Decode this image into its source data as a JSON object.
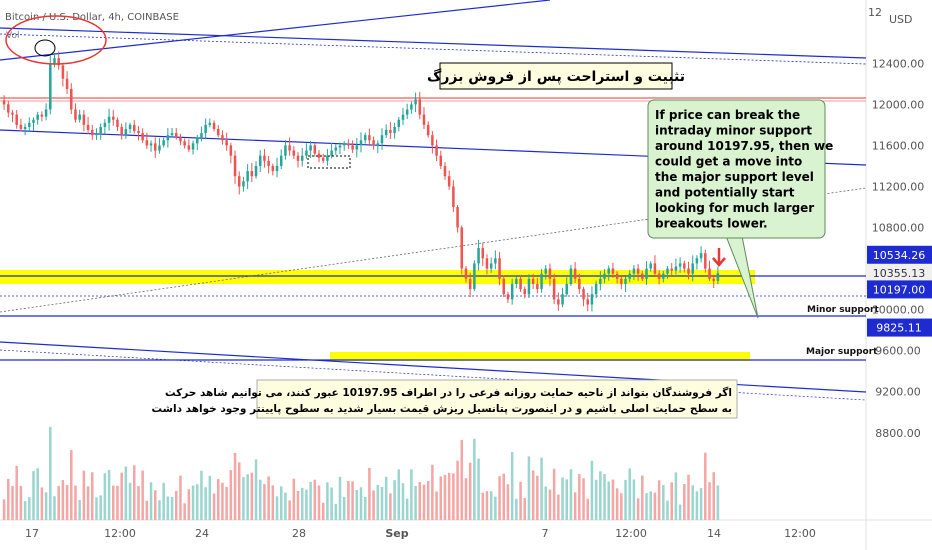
{
  "chart_data": {
    "type": "candlestick",
    "symbol_label": "Bitcoin / U.S. Dollar, 4h, COINBASE",
    "vol_label": "Vol",
    "currency": "USD",
    "ylim": [
      7950,
      12900
    ],
    "x_ticks": [
      "17",
      "12:00",
      "24",
      "28",
      "Sep",
      "7",
      "12:00",
      "14",
      "12:00"
    ],
    "y_ticks": [
      12400,
      12000,
      11600,
      11200,
      10800,
      10000,
      9600,
      9200,
      8800
    ],
    "y_tick_labels": [
      "12400.00",
      "12000.00",
      "11600.00",
      "11200.00",
      "10800.00",
      "10000.00",
      "9600.00",
      "9200.00",
      "8800.00"
    ],
    "price_tags": [
      {
        "value": 10534.26,
        "label": "10534.26",
        "color": "#1e2bd0"
      },
      {
        "value": 10355.13,
        "label": "10355.13",
        "color": "#f0f0f0"
      },
      {
        "value": 10197.0,
        "label": "10197.00",
        "color": "#1e2bd0"
      },
      {
        "value": 9825.11,
        "label": "9825.11",
        "color": "#1e2bd0"
      }
    ],
    "levels": {
      "resistance_red": 12060,
      "yellow_zone_top": 10580,
      "yellow_zone_bottom": 10450,
      "major_zone_top": 9910,
      "major_zone_bottom": 9830
    },
    "closes": [
      12000,
      11920,
      11900,
      11800,
      11760,
      11780,
      11820,
      11850,
      11900,
      11880,
      11950,
      12400,
      12450,
      12380,
      12250,
      12150,
      11950,
      11850,
      11900,
      11800,
      11750,
      11700,
      11720,
      11780,
      11820,
      11880,
      11850,
      11780,
      11700,
      11760,
      11800,
      11740,
      11720,
      11650,
      11600,
      11620,
      11550,
      11600,
      11650,
      11700,
      11720,
      11680,
      11640,
      11600,
      11560,
      11620,
      11680,
      11720,
      11800,
      11820,
      11760,
      11700,
      11650,
      11600,
      11500,
      11300,
      11200,
      11250,
      11350,
      11300,
      11400,
      11500,
      11450,
      11400,
      11350,
      11400,
      11500,
      11600,
      11550,
      11500,
      11450,
      11500,
      11550,
      11600,
      11520,
      11480,
      11450,
      11500,
      11550,
      11580,
      11600,
      11620,
      11600,
      11560,
      11600,
      11650,
      11700,
      11650,
      11600,
      11620,
      11700,
      11750,
      11720,
      11780,
      11850,
      11900,
      11950,
      12000,
      12050,
      11900,
      11800,
      11700,
      11600,
      11500,
      11400,
      11300,
      11200,
      11000,
      10800,
      10400,
      10300,
      10200,
      10450,
      10600,
      10500,
      10400,
      10450,
      10500,
      10300,
      10150,
      10100,
      10250,
      10300,
      10200,
      10150,
      10300,
      10250,
      10200,
      10350,
      10400,
      10300,
      10100,
      10050,
      10150,
      10250,
      10400,
      10300,
      10200,
      10100,
      10050,
      10150,
      10250,
      10300,
      10350,
      10400,
      10350,
      10300,
      10250,
      10300,
      10350,
      10400,
      10350,
      10300,
      10400,
      10450,
      10350,
      10300,
      10350,
      10400,
      10380,
      10420,
      10450,
      10400,
      10350,
      10450,
      10500,
      10550,
      10400,
      10300,
      10280,
      10355
    ]
  },
  "annotations": {
    "persian_title": "تثبیت و استراحت پس از فروش بزرگ",
    "english_note": "If price can break the intraday minor support around 10197.95, then we could get a move into the major support level and potentially start looking for much larger breakouts lower.",
    "minor_support_label": "Minor support",
    "major_support_label": "Major support",
    "persian_note_line1": "اگر فروشندگان بتواند از ناحیه حمایت روزانه فرعی را در اطراف 10197.95 عبور کنند، می توانیم شاهد حرکت",
    "persian_note_line2": "به سطح حمایت اصلی باشیم و در اینصورت پتانسیل ریزش قیمت بسیار شدید به سطوح پایینتر وجود خواهد داشت"
  },
  "colors": {
    "up": "#26a69a",
    "down": "#ef5350",
    "trendline": "#1e2bd0",
    "yellow": "#ffff00",
    "red_level": "#e53935",
    "note_bg": "#d9f2d0"
  }
}
